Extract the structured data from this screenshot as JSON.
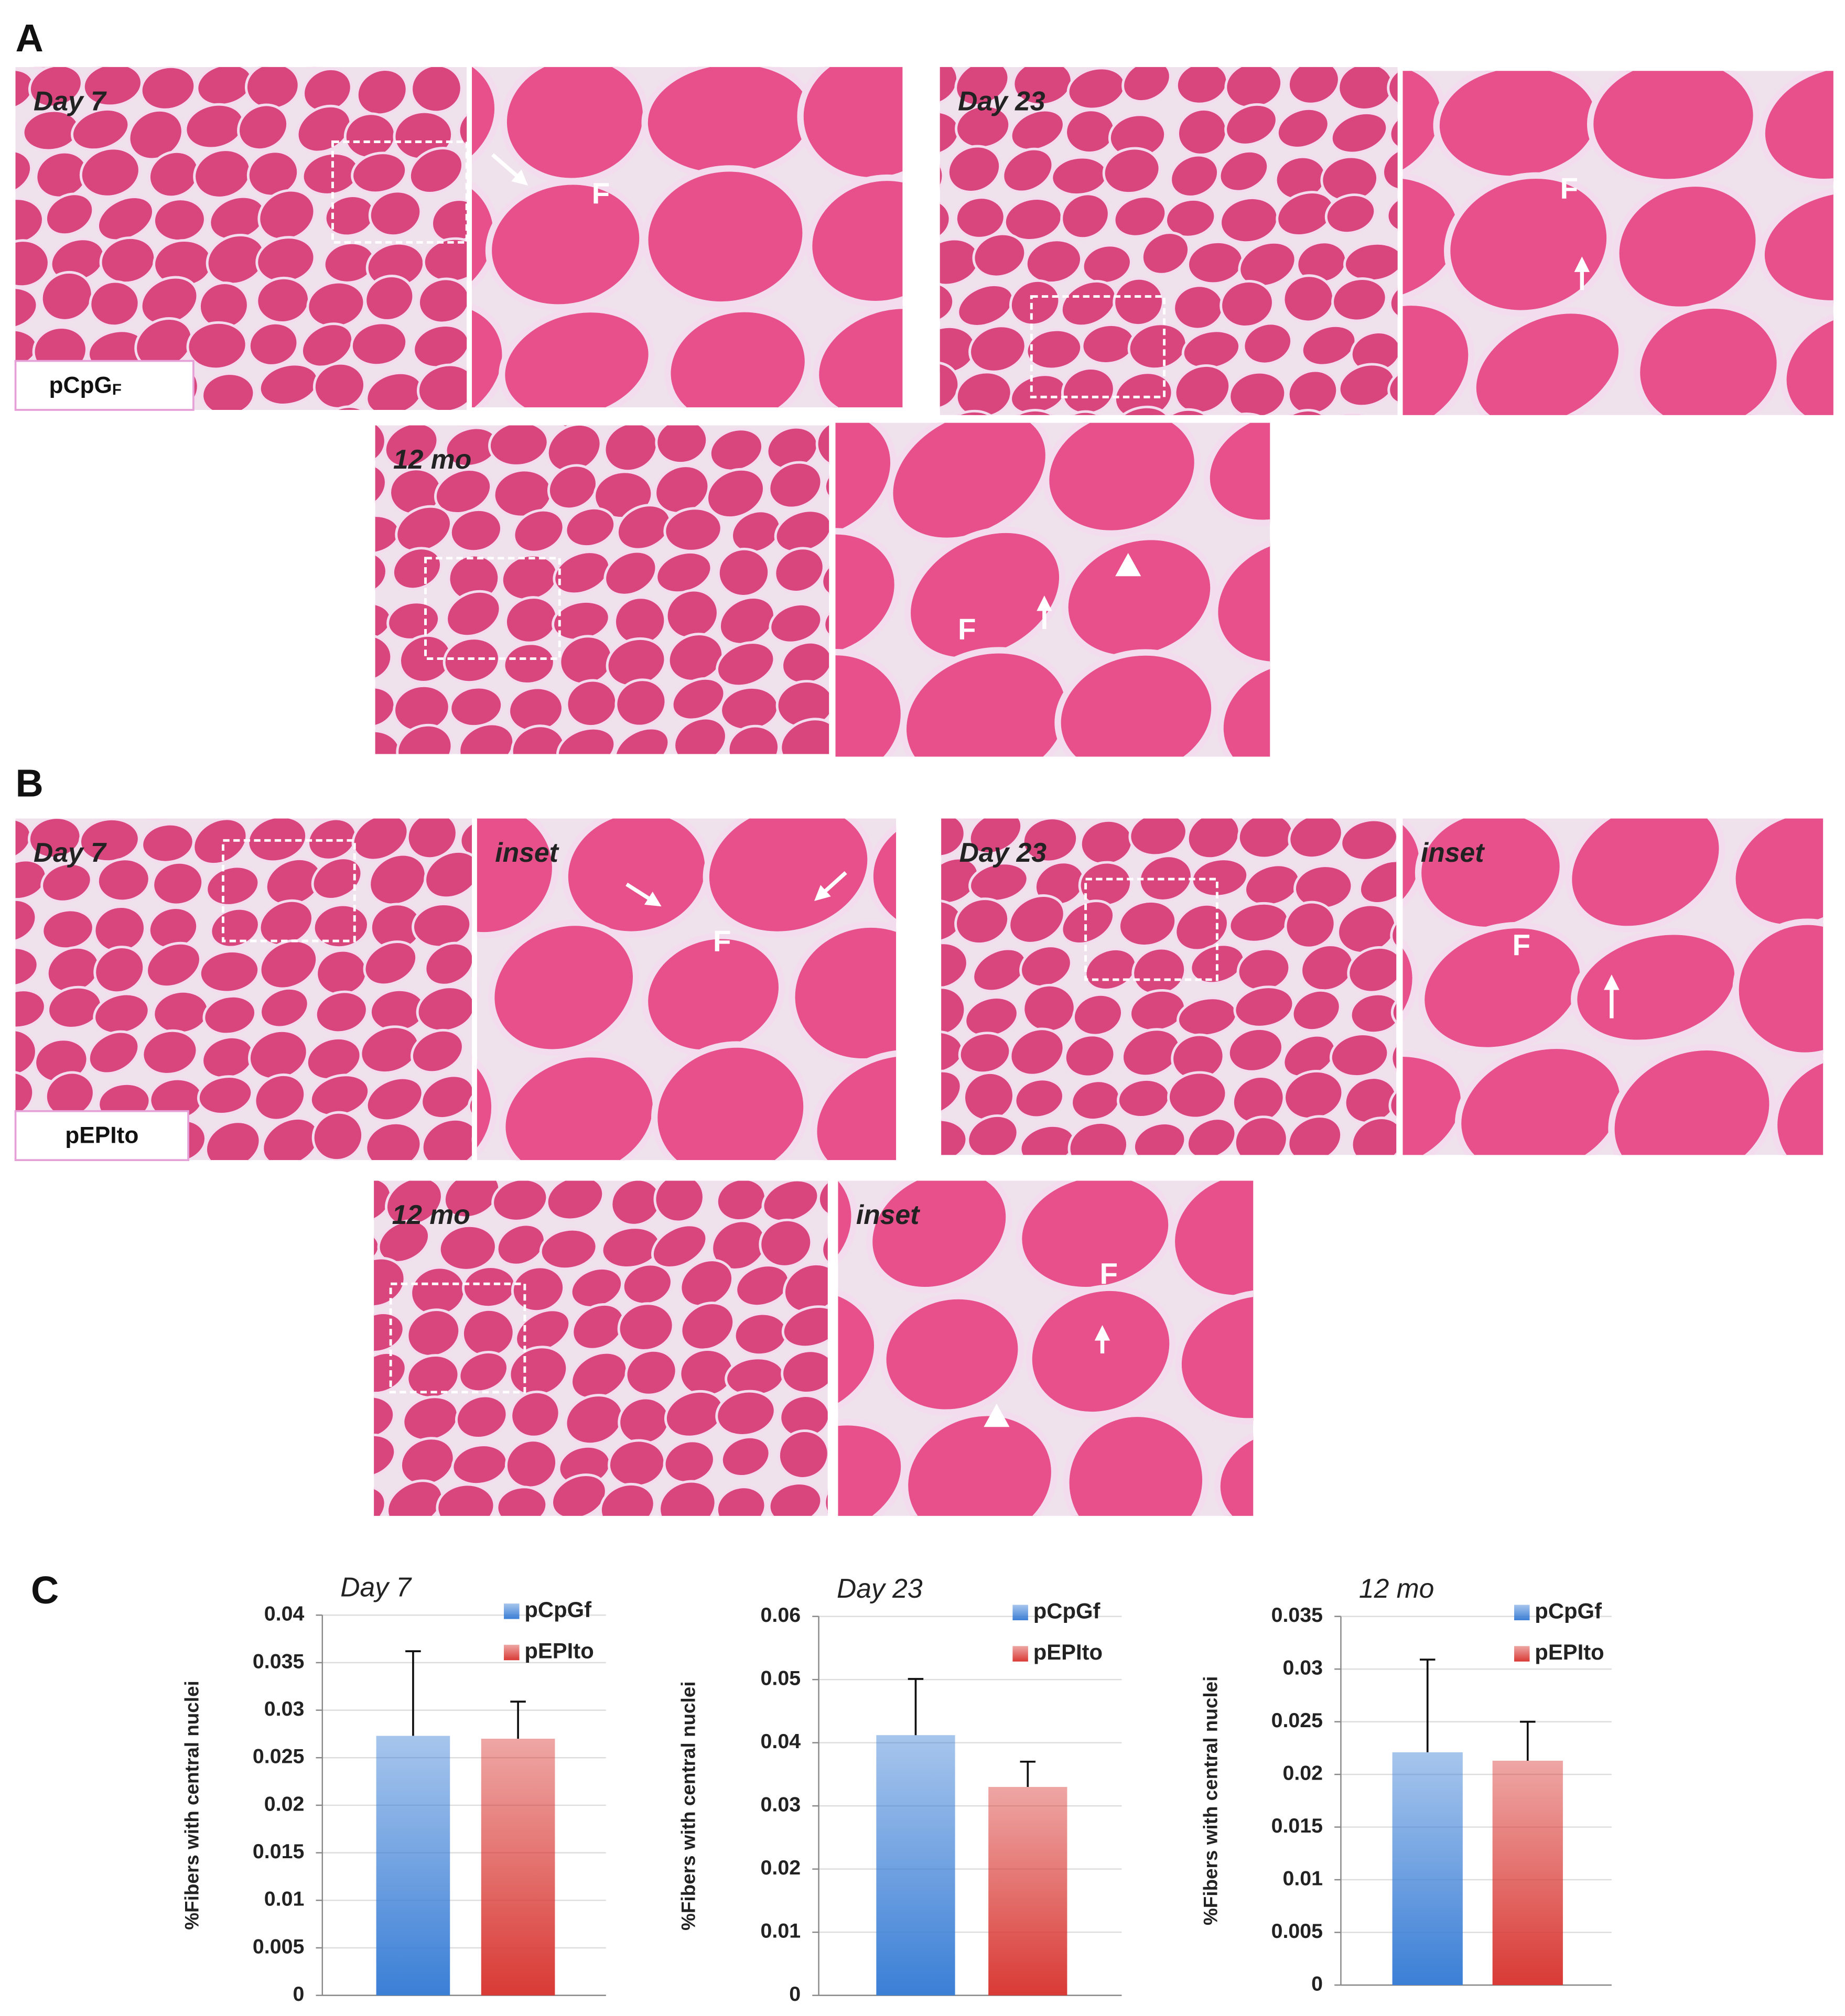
{
  "figure": {
    "panel_a": {
      "label": "A",
      "tag_main": "pCpG",
      "tag_sub": "F",
      "timepoints": [
        "Day 7",
        "Day 23",
        "12 mo"
      ],
      "fiber": "F"
    },
    "panel_b": {
      "label": "B",
      "tag": "pEPIto",
      "timepoints": [
        "Day 7",
        "Day 23",
        "12 mo"
      ],
      "inset": "inset",
      "fiber": "F"
    },
    "panel_c": {
      "label": "C"
    }
  },
  "chart_data": [
    {
      "type": "bar",
      "title": "Day 7",
      "y_label": "%Fibers with central nuclei",
      "categories": [
        null
      ],
      "series": [
        {
          "name": "pCpGf",
          "color": "#3b7fd6",
          "values": [
            0.0273
          ],
          "errors": [
            0.0089
          ]
        },
        {
          "name": "pEPIto",
          "color": "#d93a35",
          "values": [
            0.027
          ],
          "errors": [
            0.0039
          ]
        }
      ],
      "ylim": [
        0,
        0.04
      ],
      "yticks": [
        0,
        0.005,
        0.01,
        0.015,
        0.02,
        0.025,
        0.03,
        0.035,
        0.04
      ],
      "grid": true,
      "legend": "top-right"
    },
    {
      "type": "bar",
      "title": "Day 23",
      "y_label": "%Fibers with central nuclei",
      "categories": [
        null
      ],
      "series": [
        {
          "name": "pCpGf",
          "color": "#3b7fd6",
          "values": [
            0.0412
          ],
          "errors": [
            0.0089
          ]
        },
        {
          "name": "pEPIto",
          "color": "#d93a35",
          "values": [
            0.033
          ],
          "errors": [
            0.004
          ]
        }
      ],
      "ylim": [
        0,
        0.06
      ],
      "yticks": [
        0,
        0.01,
        0.02,
        0.03,
        0.04,
        0.05,
        0.06
      ],
      "grid": true,
      "legend": "top-right"
    },
    {
      "type": "bar",
      "title": "12 mo",
      "y_label": "%Fibers with central nuclei",
      "categories": [
        null
      ],
      "series": [
        {
          "name": "pCpGf",
          "color": "#3b7fd6",
          "values": [
            0.0221
          ],
          "errors": [
            0.0088
          ]
        },
        {
          "name": "pEPIto",
          "color": "#d93a35",
          "values": [
            0.0213
          ],
          "errors": [
            0.0037
          ]
        }
      ],
      "ylim": [
        0,
        0.035
      ],
      "yticks": [
        0,
        0.005,
        0.01,
        0.015,
        0.02,
        0.025,
        0.03,
        0.035
      ],
      "grid": true,
      "legend": "top-right"
    }
  ]
}
